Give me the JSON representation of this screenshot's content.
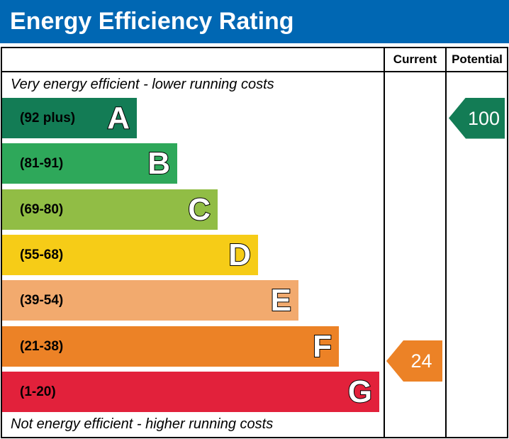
{
  "title": "Energy Efficiency Rating",
  "columns": {
    "current": "Current",
    "potential": "Potential"
  },
  "captions": {
    "top": "Very energy efficient - lower running costs",
    "bottom": "Not energy efficient - higher running costs"
  },
  "chart_data": {
    "type": "bar",
    "title": "Energy Efficiency Rating",
    "categories": [
      "A",
      "B",
      "C",
      "D",
      "E",
      "F",
      "G"
    ],
    "bands": [
      {
        "letter": "A",
        "range": "(92 plus)",
        "color": "#137c55"
      },
      {
        "letter": "B",
        "range": "(81-91)",
        "color": "#2ea85a"
      },
      {
        "letter": "C",
        "range": "(69-80)",
        "color": "#91bd45"
      },
      {
        "letter": "D",
        "range": "(55-68)",
        "color": "#f6cc17"
      },
      {
        "letter": "E",
        "range": "(39-54)",
        "color": "#f2aa6e"
      },
      {
        "letter": "F",
        "range": "(21-38)",
        "color": "#ec8226"
      },
      {
        "letter": "G",
        "range": "(1-20)",
        "color": "#e2213b"
      }
    ],
    "current": {
      "value": 24,
      "band": "F",
      "color": "#ec8226"
    },
    "potential": {
      "value": 100,
      "band": "A",
      "color": "#137c55"
    }
  }
}
